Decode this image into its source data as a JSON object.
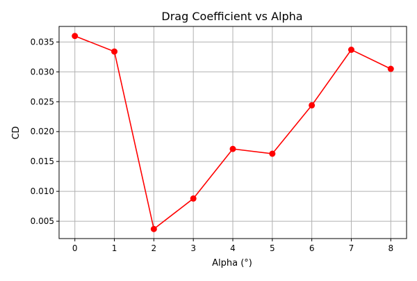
{
  "chart_data": {
    "type": "line",
    "title": "Drag Coefficient vs Alpha",
    "xlabel": "Alpha (°)",
    "ylabel": "CD",
    "xlim": [
      -0.4,
      8.4
    ],
    "ylim": [
      0.0021,
      0.0376
    ],
    "x_ticks": [
      0,
      1,
      2,
      3,
      4,
      5,
      6,
      7,
      8
    ],
    "y_ticks": [
      0.005,
      0.01,
      0.015,
      0.02,
      0.025,
      0.03,
      0.035
    ],
    "y_tick_labels": [
      "0.005",
      "0.010",
      "0.015",
      "0.020",
      "0.025",
      "0.030",
      "0.035"
    ],
    "grid": true,
    "series": [
      {
        "color": "#ff0000",
        "marker": "circle",
        "x": [
          0,
          1,
          2,
          3,
          4,
          5,
          6,
          7,
          8
        ],
        "y": [
          0.036,
          0.0334,
          0.0037,
          0.0088,
          0.0171,
          0.0163,
          0.0244,
          0.0337,
          0.0305
        ]
      }
    ]
  }
}
